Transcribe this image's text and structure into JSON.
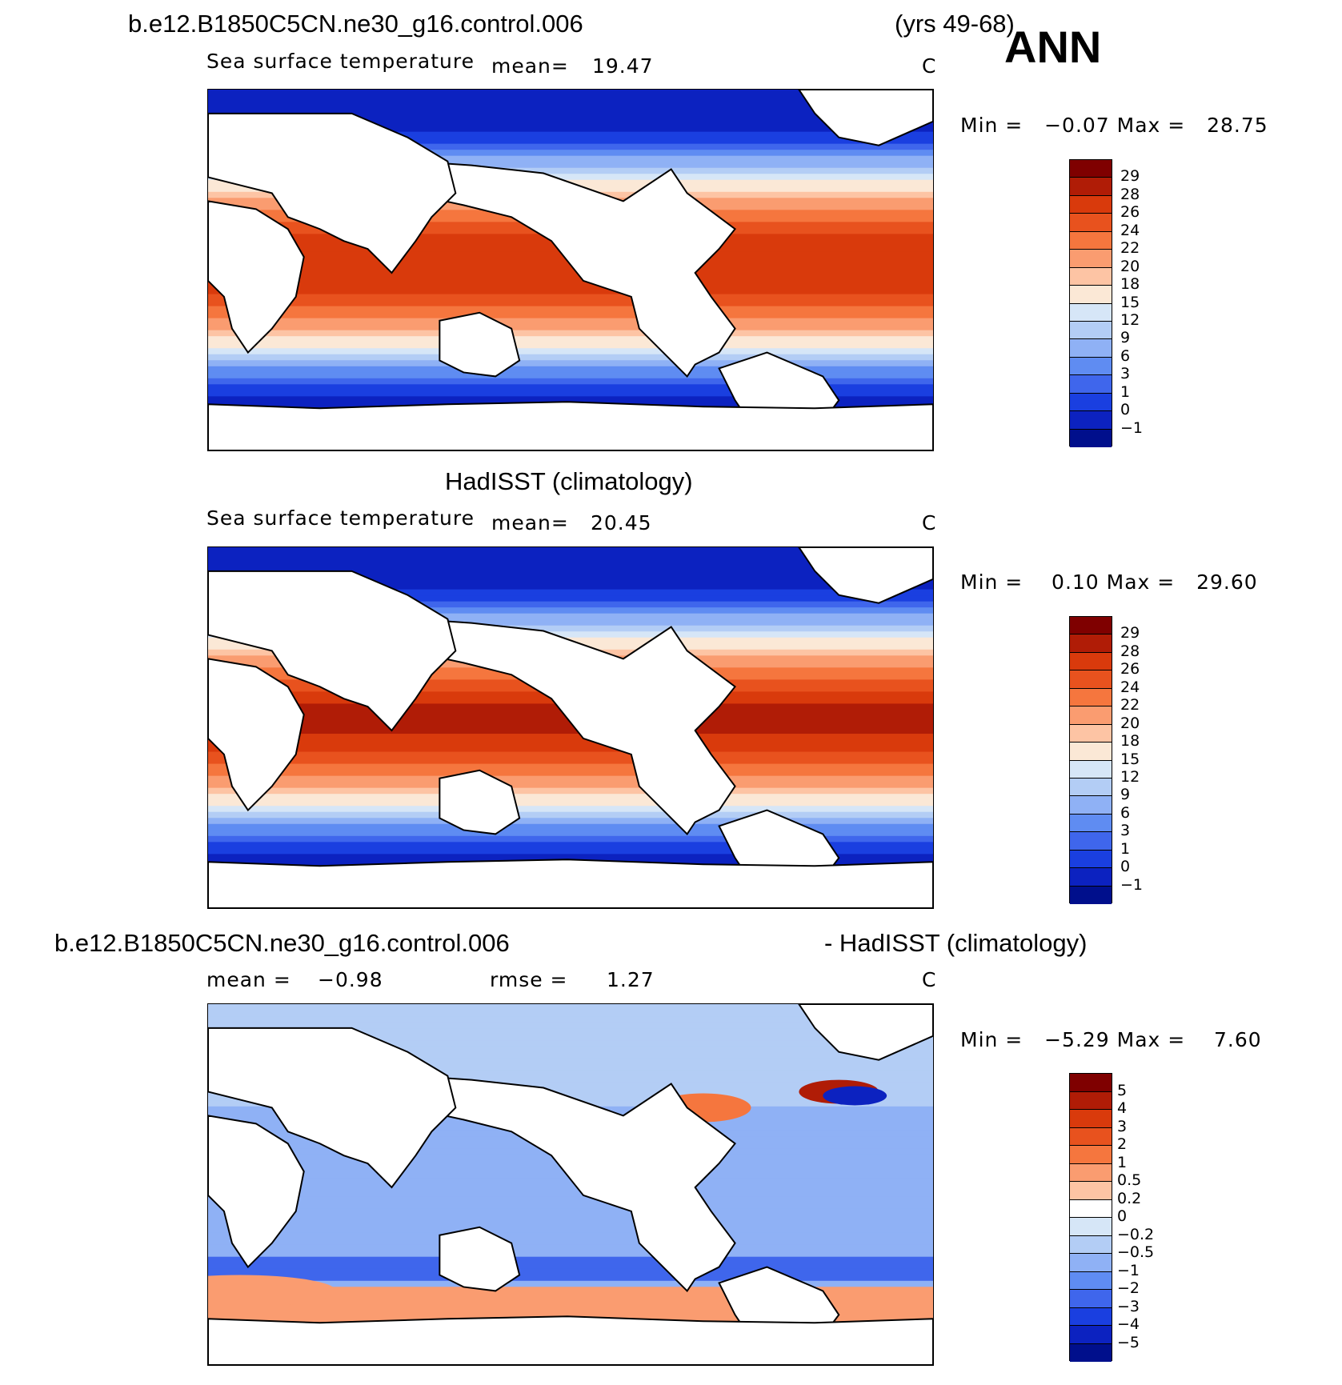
{
  "header": {
    "case_name": "b.e12.B1850C5CN.ne30_g16.control.006",
    "years": "(yrs 49-68)",
    "season": "ANN"
  },
  "panels": [
    {
      "id": "model",
      "title": "",
      "variable": "Sea surface temperature",
      "stat_label": "mean=",
      "stat_value": "19.47",
      "units": "C",
      "minmax": "Min =   −0.07 Max =   28.75",
      "colorbar_labels": [
        "29",
        "28",
        "26",
        "24",
        "22",
        "20",
        "18",
        "15",
        "12",
        "9",
        "6",
        "3",
        "1",
        "0",
        "−1"
      ]
    },
    {
      "id": "obs",
      "title": "HadISST (climatology)",
      "variable": "Sea surface temperature",
      "stat_label": "mean=",
      "stat_value": "20.45",
      "units": "C",
      "minmax": "Min =    0.10 Max =   29.60",
      "colorbar_labels": [
        "29",
        "28",
        "26",
        "24",
        "22",
        "20",
        "18",
        "15",
        "12",
        "9",
        "6",
        "3",
        "1",
        "0",
        "−1"
      ]
    },
    {
      "id": "diff",
      "title_left": "b.e12.B1850C5CN.ne30_g16.control.006",
      "title_right": "- HadISST (climatology)",
      "stat_label": "mean =",
      "stat_value": "−0.98",
      "rmse_label": "rmse =",
      "rmse_value": "1.27",
      "units": "C",
      "minmax": "Min =   −5.29 Max =    7.60",
      "colorbar_labels": [
        "5",
        "4",
        "3",
        "2",
        "1",
        "0.5",
        "0.2",
        "0",
        "−0.2",
        "−0.5",
        "−1",
        "−2",
        "−3",
        "−4",
        "−5"
      ]
    }
  ],
  "colors": {
    "sst_scale": [
      "#7f0000",
      "#b01c06",
      "#d93a0c",
      "#e8521e",
      "#f5763e",
      "#fa9c70",
      "#fdc4a4",
      "#fbe8d6",
      "#d6e6f7",
      "#b3cdf5",
      "#8fb1f5",
      "#5f8cf2",
      "#3f66ec",
      "#1a3fe0",
      "#0c22c0",
      "#000f8c"
    ],
    "diff_scale": [
      "#7f0000",
      "#b01c06",
      "#d93a0c",
      "#e8521e",
      "#f5763e",
      "#fa9c70",
      "#fdc4a4",
      "#ffffff",
      "#d6e6f7",
      "#b3cdf5",
      "#8fb1f5",
      "#5f8cf2",
      "#3f66ec",
      "#1a3fe0",
      "#0c22c0",
      "#000f8c"
    ]
  }
}
